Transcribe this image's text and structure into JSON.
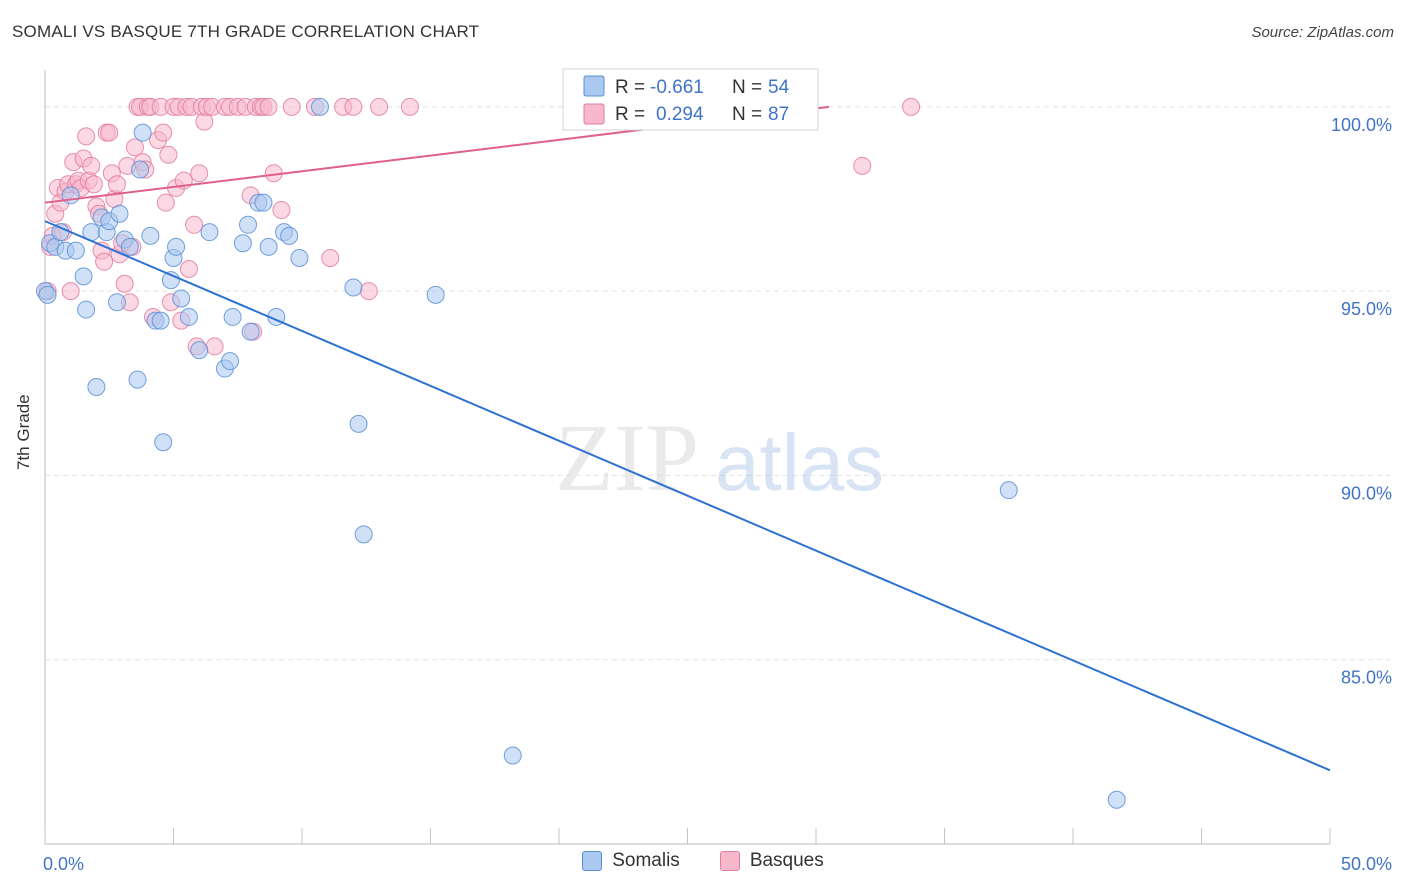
{
  "title": "SOMALI VS BASQUE 7TH GRADE CORRELATION CHART",
  "source": "Source: ZipAtlas.com",
  "watermark": {
    "zip": "ZIP",
    "atlas": "atlas"
  },
  "legend_box": [
    {
      "r_label": "R =",
      "r_value": "-0.661",
      "n_label": "N =",
      "n_value": "54"
    },
    {
      "r_label": "R =",
      "r_value": "0.294",
      "n_label": "N =",
      "n_value": "87"
    }
  ],
  "bottom_legend": [
    "Somalis",
    "Basques"
  ],
  "colors": {
    "somalis_fill": "#aac8f0",
    "somalis_stroke": "#5b8fd6",
    "somalis_line": "#2d72d2",
    "basques_fill": "#f7b8cc",
    "basques_stroke": "#e27ca0",
    "basques_line": "#e0608c",
    "grid": "#e2e2e2",
    "tick_text": "#3f74c8"
  },
  "chart_data": {
    "type": "scatter",
    "title": "SOMALI VS BASQUE 7TH GRADE CORRELATION CHART",
    "xlabel": "",
    "ylabel": "7th Grade",
    "xlim": [
      0,
      50
    ],
    "ylim": [
      80,
      101
    ],
    "x_tick_labels": [
      "0.0%",
      "50.0%"
    ],
    "y_ticks": [
      85,
      90,
      95,
      100
    ],
    "y_tick_labels": [
      "85.0%",
      "90.0%",
      "95.0%",
      "100.0%"
    ],
    "grid": "horizontal dashed",
    "legend": "top-center",
    "series": [
      {
        "name": "Somalis",
        "r": -0.661,
        "n": 54,
        "trend": {
          "x": [
            0.0,
            50.0
          ],
          "y": [
            96.9,
            82.0
          ]
        },
        "points": [
          [
            0.0,
            95.0
          ],
          [
            0.1,
            94.9
          ],
          [
            0.2,
            96.3
          ],
          [
            0.4,
            96.2
          ],
          [
            0.6,
            96.6
          ],
          [
            0.8,
            96.1
          ],
          [
            1.0,
            97.6
          ],
          [
            1.2,
            96.1
          ],
          [
            1.5,
            95.4
          ],
          [
            1.6,
            94.5
          ],
          [
            1.8,
            96.6
          ],
          [
            2.0,
            92.4
          ],
          [
            2.2,
            97.0
          ],
          [
            2.4,
            96.6
          ],
          [
            2.5,
            96.9
          ],
          [
            2.8,
            94.7
          ],
          [
            2.9,
            97.1
          ],
          [
            3.1,
            96.4
          ],
          [
            3.3,
            96.2
          ],
          [
            3.6,
            92.6
          ],
          [
            3.7,
            98.3
          ],
          [
            3.8,
            99.3
          ],
          [
            4.1,
            96.5
          ],
          [
            4.3,
            94.2
          ],
          [
            4.5,
            94.2
          ],
          [
            4.6,
            90.9
          ],
          [
            4.9,
            95.3
          ],
          [
            5.0,
            95.9
          ],
          [
            5.1,
            96.2
          ],
          [
            5.3,
            94.8
          ],
          [
            5.6,
            94.3
          ],
          [
            6.0,
            93.4
          ],
          [
            6.4,
            96.6
          ],
          [
            7.0,
            92.9
          ],
          [
            7.2,
            93.1
          ],
          [
            7.3,
            94.3
          ],
          [
            7.7,
            96.3
          ],
          [
            7.9,
            96.8
          ],
          [
            8.0,
            93.9
          ],
          [
            8.3,
            97.4
          ],
          [
            8.5,
            97.4
          ],
          [
            8.7,
            96.2
          ],
          [
            9.0,
            94.3
          ],
          [
            9.3,
            96.6
          ],
          [
            9.5,
            96.5
          ],
          [
            9.9,
            95.9
          ],
          [
            10.7,
            100.0
          ],
          [
            12.0,
            95.1
          ],
          [
            12.2,
            91.4
          ],
          [
            12.4,
            88.4
          ],
          [
            15.2,
            94.9
          ],
          [
            18.2,
            82.4
          ],
          [
            37.5,
            89.6
          ],
          [
            41.7,
            81.2
          ]
        ]
      },
      {
        "name": "Basques",
        "r": 0.294,
        "n": 87,
        "trend": {
          "x": [
            0.0,
            30.5
          ],
          "y": [
            97.4,
            100.0
          ]
        },
        "points": [
          [
            0.1,
            95.0
          ],
          [
            0.2,
            96.2
          ],
          [
            0.3,
            96.5
          ],
          [
            0.4,
            97.1
          ],
          [
            0.5,
            97.8
          ],
          [
            0.6,
            97.4
          ],
          [
            0.7,
            96.6
          ],
          [
            0.8,
            97.7
          ],
          [
            0.9,
            97.9
          ],
          [
            1.0,
            95.0
          ],
          [
            1.1,
            98.5
          ],
          [
            1.2,
            97.9
          ],
          [
            1.3,
            98.0
          ],
          [
            1.4,
            97.8
          ],
          [
            1.5,
            98.6
          ],
          [
            1.6,
            99.2
          ],
          [
            1.7,
            98.0
          ],
          [
            1.8,
            98.4
          ],
          [
            1.9,
            97.9
          ],
          [
            2.0,
            97.3
          ],
          [
            2.1,
            97.1
          ],
          [
            2.2,
            96.1
          ],
          [
            2.3,
            95.8
          ],
          [
            2.4,
            99.3
          ],
          [
            2.5,
            99.3
          ],
          [
            2.6,
            98.2
          ],
          [
            2.7,
            97.5
          ],
          [
            2.8,
            97.9
          ],
          [
            2.9,
            96.0
          ],
          [
            3.0,
            96.3
          ],
          [
            3.1,
            95.2
          ],
          [
            3.2,
            98.4
          ],
          [
            3.3,
            94.7
          ],
          [
            3.4,
            96.2
          ],
          [
            3.5,
            98.9
          ],
          [
            3.6,
            100.0
          ],
          [
            3.7,
            100.0
          ],
          [
            3.8,
            98.5
          ],
          [
            3.9,
            98.3
          ],
          [
            4.0,
            100.0
          ],
          [
            4.1,
            100.0
          ],
          [
            4.2,
            94.3
          ],
          [
            4.4,
            99.1
          ],
          [
            4.5,
            100.0
          ],
          [
            4.6,
            99.3
          ],
          [
            4.7,
            97.4
          ],
          [
            4.8,
            98.7
          ],
          [
            4.9,
            94.7
          ],
          [
            5.0,
            100.0
          ],
          [
            5.1,
            97.8
          ],
          [
            5.2,
            100.0
          ],
          [
            5.3,
            94.2
          ],
          [
            5.4,
            98.0
          ],
          [
            5.5,
            100.0
          ],
          [
            5.6,
            95.6
          ],
          [
            5.7,
            100.0
          ],
          [
            5.8,
            96.8
          ],
          [
            5.9,
            93.5
          ],
          [
            6.0,
            98.2
          ],
          [
            6.1,
            100.0
          ],
          [
            6.2,
            99.6
          ],
          [
            6.3,
            100.0
          ],
          [
            6.5,
            100.0
          ],
          [
            6.6,
            93.5
          ],
          [
            7.0,
            100.0
          ],
          [
            7.2,
            100.0
          ],
          [
            7.5,
            100.0
          ],
          [
            7.8,
            100.0
          ],
          [
            8.0,
            97.6
          ],
          [
            8.1,
            93.9
          ],
          [
            8.2,
            100.0
          ],
          [
            8.4,
            100.0
          ],
          [
            8.5,
            100.0
          ],
          [
            8.7,
            100.0
          ],
          [
            8.9,
            98.2
          ],
          [
            9.2,
            97.2
          ],
          [
            9.6,
            100.0
          ],
          [
            10.5,
            100.0
          ],
          [
            11.1,
            95.9
          ],
          [
            11.6,
            100.0
          ],
          [
            12.0,
            100.0
          ],
          [
            12.6,
            95.0
          ],
          [
            13.0,
            100.0
          ],
          [
            14.2,
            100.0
          ],
          [
            26.8,
            100.0
          ],
          [
            31.8,
            98.4
          ],
          [
            33.7,
            100.0
          ]
        ]
      }
    ]
  }
}
